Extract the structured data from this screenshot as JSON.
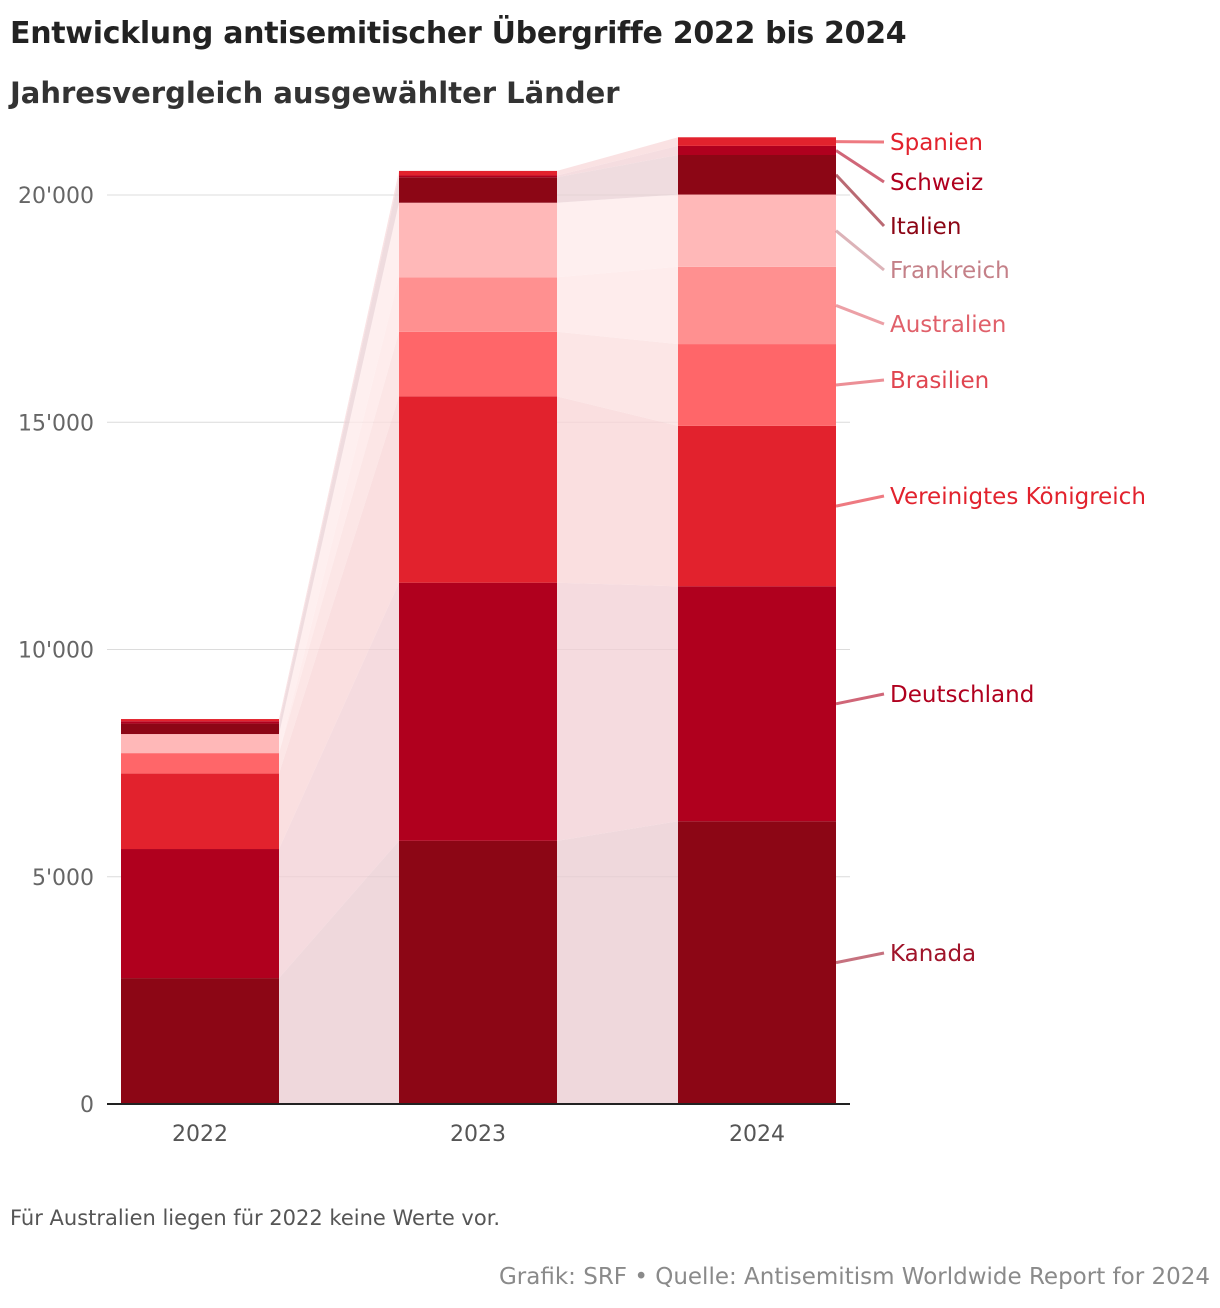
{
  "header": {
    "title": "Entwicklung antisemitischer Übergriffe 2022 bis 2024",
    "subtitle": "Jahresvergleich ausgewählter Länder"
  },
  "footer": {
    "note": "Für Australien liegen für 2022 keine Werte vor.",
    "source": "Grafik: SRF • Quelle: Antisemitism Worldwide Report for 2024"
  },
  "chart_data": {
    "type": "bar",
    "stacked": true,
    "title": "Entwicklung antisemitischer Übergriffe 2022 bis 2024",
    "subtitle": "Jahresvergleich ausgewählter Länder",
    "xlabel": "",
    "ylabel": "",
    "categories": [
      "2022",
      "2023",
      "2024"
    ],
    "ylim": [
      0,
      21000
    ],
    "yticks": [
      0,
      5000,
      10000,
      15000,
      20000
    ],
    "ytick_labels": [
      "0",
      "5'000",
      "10'000",
      "15'000",
      "20'000"
    ],
    "grid": true,
    "legend": "right, labels placed next to the 2024 bar",
    "series": [
      {
        "name": "Kanada",
        "color": "#8c0615",
        "label_color": "#a0142a",
        "values": [
          2770,
          5790,
          6220
        ]
      },
      {
        "name": "Deutschland",
        "color": "#b0001e",
        "label_color": "#b0001e",
        "values": [
          2840,
          5680,
          5170
        ]
      },
      {
        "name": "Vereinigtes Königreich",
        "color": "#e2222d",
        "label_color": "#e2222d",
        "values": [
          1660,
          4100,
          3530
        ]
      },
      {
        "name": "Brasilien",
        "color": "#ff6669",
        "label_color": "#e04550",
        "values": [
          450,
          1420,
          1800
        ]
      },
      {
        "name": "Australien",
        "color": "#ff9090",
        "label_color": "#e0606a",
        "values": [
          0,
          1200,
          1700
        ]
      },
      {
        "name": "Frankreich",
        "color": "#ffb8b8",
        "label_color": "#c48088",
        "values": [
          420,
          1640,
          1590
        ]
      },
      {
        "name": "Italien",
        "color": "#8c0615",
        "label_color": "#8c0615",
        "values": [
          230,
          560,
          870
        ]
      },
      {
        "name": "Schweiz",
        "color": "#b0001e",
        "label_color": "#b0001e",
        "values": [
          50,
          40,
          200
        ]
      },
      {
        "name": "Spanien",
        "color": "#e2222d",
        "label_color": "#e2222d",
        "values": [
          50,
          100,
          190
        ]
      }
    ]
  }
}
